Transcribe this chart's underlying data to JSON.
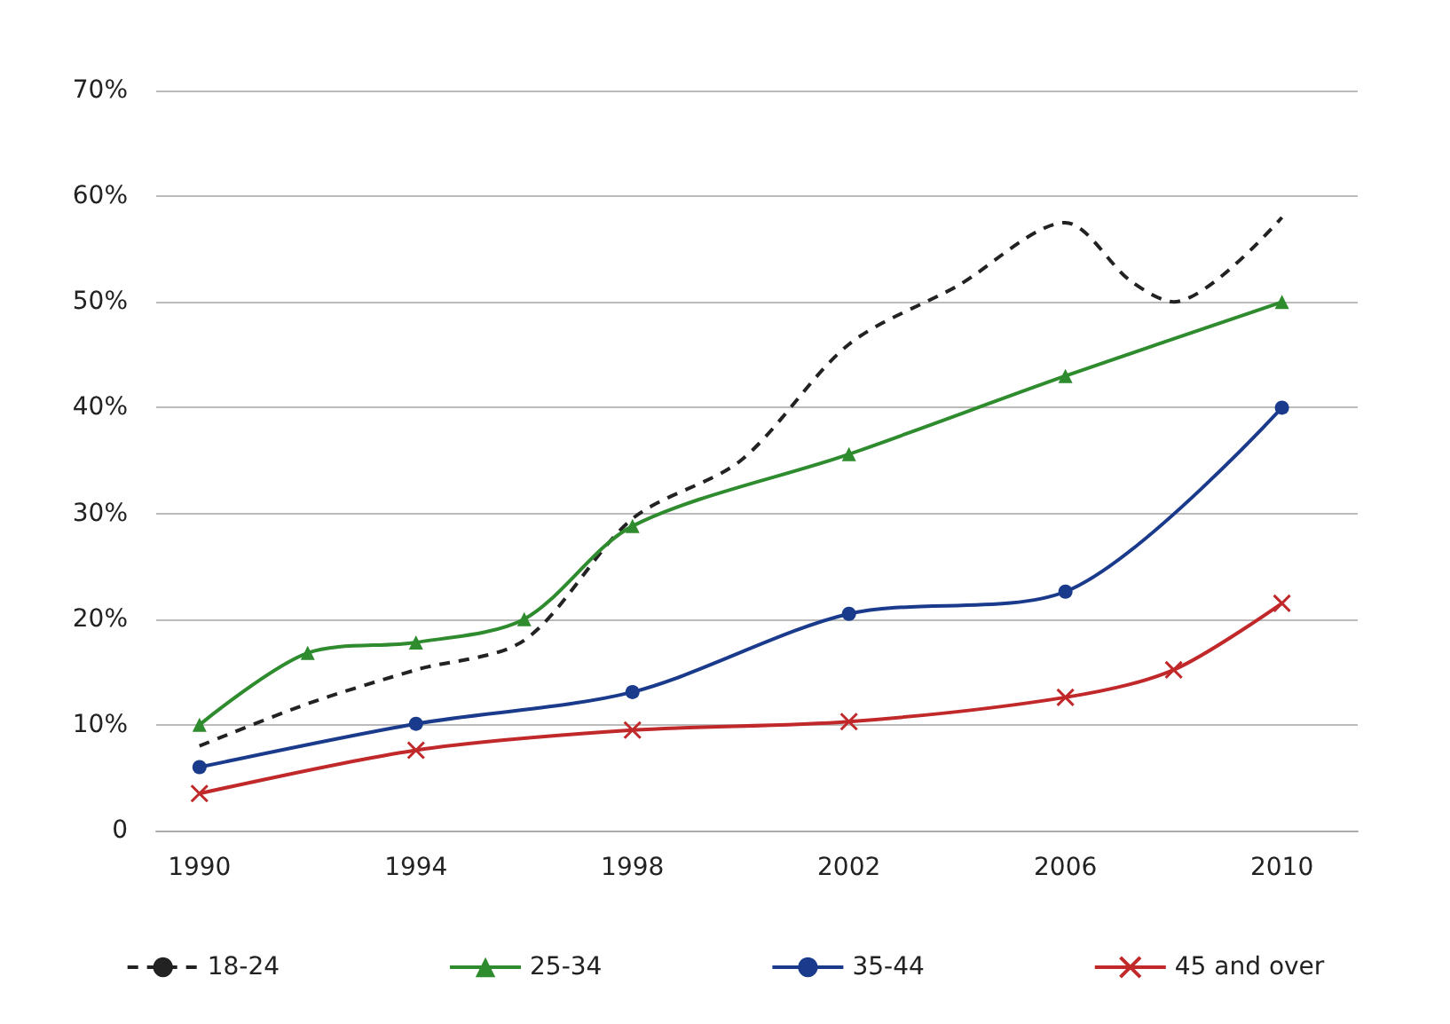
{
  "chart_data": {
    "type": "line",
    "xlim": [
      1989.2,
      2011.4
    ],
    "xticks": [
      1990,
      1994,
      1998,
      2002,
      2006,
      2010
    ],
    "ylim": [
      0,
      70
    ],
    "yticks": [
      0,
      {
        "value": 10,
        "label": "10%"
      },
      {
        "value": 20,
        "label": "20%"
      },
      {
        "value": 30,
        "label": "30%"
      },
      {
        "value": 40,
        "label": "40%"
      },
      {
        "value": 50,
        "label": "50%"
      },
      {
        "value": 60,
        "label": "60%"
      },
      {
        "value": 70,
        "label": "70%"
      }
    ],
    "grid": "y",
    "legend": "bottom",
    "series": [
      {
        "name": "18-24",
        "color": "#222222",
        "line_style": "dashed",
        "marker": "none",
        "x": [
          1990,
          1992,
          1994,
          1996,
          1998,
          2000,
          2002,
          2004,
          2006,
          2007.2,
          2008,
          2010
        ],
        "values": [
          8,
          12,
          15.2,
          18,
          29.5,
          35,
          46,
          51.5,
          57.5,
          52,
          50,
          58
        ]
      },
      {
        "name": "25-34",
        "color": "#2e8b2e",
        "line_style": "solid",
        "marker": "triangle",
        "x": [
          1990,
          1992,
          1994,
          1996,
          1998,
          2002,
          2006,
          2010
        ],
        "values": [
          10,
          16.8,
          17.8,
          20,
          28.8,
          35.6,
          43,
          50
        ]
      },
      {
        "name": "35-44",
        "color": "#1a3a8c",
        "line_style": "solid",
        "marker": "circle",
        "x": [
          1990,
          1994,
          1998,
          2002,
          2006,
          2010
        ],
        "values": [
          6,
          10.1,
          13.1,
          20.5,
          22.6,
          40
        ]
      },
      {
        "name": "45 and over",
        "color": "#c0282a",
        "line_style": "solid",
        "marker": "cross",
        "x": [
          1990,
          1994,
          1998,
          2002,
          2006,
          2008,
          2010
        ],
        "values": [
          3.5,
          7.6,
          9.5,
          10.3,
          12.6,
          15.2,
          21.5
        ]
      }
    ]
  }
}
